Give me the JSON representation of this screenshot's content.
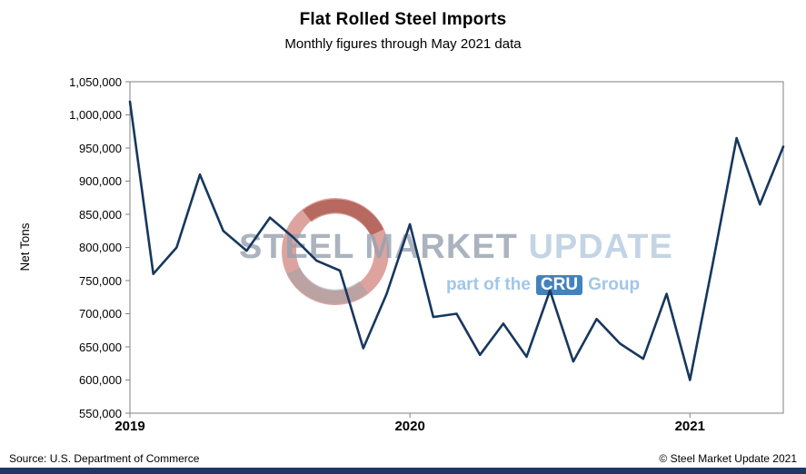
{
  "header": {
    "title": "Flat Rolled Steel Imports",
    "subtitle": "Monthly figures through May 2021 data"
  },
  "chart_data": {
    "type": "line",
    "title": "Flat Rolled Steel Imports",
    "subtitle": "Monthly figures through May 2021 data",
    "xlabel": "",
    "ylabel": "Net Tons",
    "ylim": [
      550000,
      1050000
    ],
    "ytick_step": 50000,
    "grid": false,
    "legend": "none",
    "line_color": "#17375e",
    "x": [
      "Jan 2019",
      "Feb 2019",
      "Mar 2019",
      "Apr 2019",
      "May 2019",
      "Jun 2019",
      "Jul 2019",
      "Aug 2019",
      "Sep 2019",
      "Oct 2019",
      "Nov 2019",
      "Dec 2019",
      "Jan 2020",
      "Feb 2020",
      "Mar 2020",
      "Apr 2020",
      "May 2020",
      "Jun 2020",
      "Jul 2020",
      "Aug 2020",
      "Sep 2020",
      "Oct 2020",
      "Nov 2020",
      "Dec 2020",
      "Jan 2021",
      "Feb 2021",
      "Mar 2021",
      "Apr 2021",
      "May 2021"
    ],
    "values": [
      1020000,
      760000,
      800000,
      910000,
      825000,
      795000,
      845000,
      815000,
      780000,
      765000,
      648000,
      730000,
      835000,
      695000,
      700000,
      638000,
      685000,
      635000,
      735000,
      628000,
      692000,
      655000,
      632000,
      730000,
      600000,
      780000,
      965000,
      865000,
      952000
    ],
    "ytick_labels": [
      "550,000",
      "600,000",
      "650,000",
      "700,000",
      "750,000",
      "800,000",
      "850,000",
      "900,000",
      "950,000",
      "1,000,000",
      "1,050,000"
    ],
    "xticks": [
      {
        "label": "2019",
        "index": 0
      },
      {
        "label": "2020",
        "index": 12
      },
      {
        "label": "2021",
        "index": 24
      }
    ]
  },
  "watermark": {
    "brand_primary": "STEEL MARKET",
    "brand_secondary": "UPDATE",
    "tagline_prefix": "part of the",
    "tagline_logo": "CRU",
    "tagline_suffix": "Group"
  },
  "footer": {
    "source": "Source: U.S. Department of Commerce",
    "copyright": "© Steel Market Update 2021"
  },
  "colors": {
    "line": "#17375e",
    "axis": "#808080",
    "footer_bar": "#1f3864",
    "watermark_gray": "#96a0af",
    "watermark_light_blue": "#b9cde0",
    "cru_blue": "#2e75b6",
    "logo_red": "#b3352a"
  }
}
